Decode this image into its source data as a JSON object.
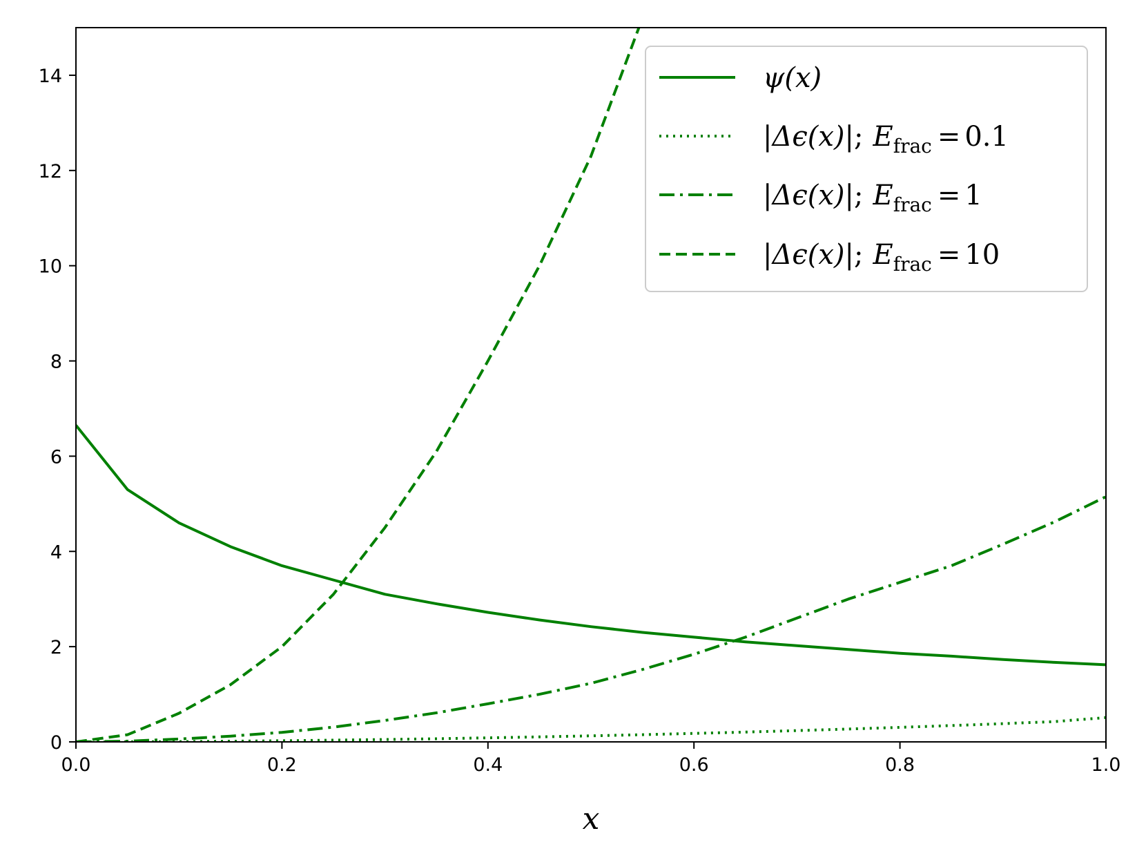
{
  "chart_data": {
    "type": "line",
    "xlabel": "x",
    "ylabel": "",
    "title": "",
    "xlim": [
      0.0,
      1.0
    ],
    "ylim": [
      0,
      15
    ],
    "xticks": [
      "0.0",
      "0.2",
      "0.4",
      "0.6",
      "0.8",
      "1.0"
    ],
    "yticks": [
      "0",
      "2",
      "4",
      "6",
      "8",
      "10",
      "12",
      "14"
    ],
    "grid": false,
    "legend_position": "top-right",
    "color": "#008000",
    "x": [
      0.0,
      0.05,
      0.1,
      0.15,
      0.2,
      0.25,
      0.3,
      0.35,
      0.4,
      0.45,
      0.5,
      0.55,
      0.6,
      0.65,
      0.7,
      0.75,
      0.8,
      0.85,
      0.9,
      0.95,
      1.0
    ],
    "series": [
      {
        "name": "ψ(x)",
        "legend_parts": {
          "func": "ψ(x)"
        },
        "style": "solid",
        "values": [
          6.65,
          5.3,
          4.6,
          4.1,
          3.7,
          3.4,
          3.1,
          2.9,
          2.72,
          2.56,
          2.42,
          2.3,
          2.2,
          2.1,
          2.02,
          1.94,
          1.86,
          1.8,
          1.73,
          1.67,
          1.62
        ]
      },
      {
        "name": "|Δϵ(x)|; E_frac = 0.1",
        "legend_parts": {
          "func": "|Δϵ(x)|",
          "sep": ";",
          "sym": "E",
          "sub": "frac",
          "eq": "=",
          "val": "0.1"
        },
        "style": "dotted",
        "values": [
          0.0,
          0.0015,
          0.006,
          0.014,
          0.024,
          0.036,
          0.05,
          0.066,
          0.085,
          0.105,
          0.127,
          0.151,
          0.178,
          0.206,
          0.237,
          0.27,
          0.305,
          0.343,
          0.383,
          0.426,
          0.51
        ]
      },
      {
        "name": "|Δϵ(x)|; E_frac = 1",
        "legend_parts": {
          "func": "|Δϵ(x)|",
          "sep": ";",
          "sym": "E",
          "sub": "frac",
          "eq": "=",
          "val": "1"
        },
        "style": "dashdot",
        "values": [
          0.0,
          0.015,
          0.06,
          0.12,
          0.2,
          0.31,
          0.45,
          0.61,
          0.8,
          1.0,
          1.23,
          1.52,
          1.84,
          2.2,
          2.6,
          3.0,
          3.35,
          3.7,
          4.15,
          4.62,
          5.15
        ]
      },
      {
        "name": "|Δϵ(x)|; E_frac = 10",
        "legend_parts": {
          "func": "|Δϵ(x)|",
          "sep": ";",
          "sym": "E",
          "sub": "frac",
          "eq": "=",
          "val": "10"
        },
        "style": "dashed",
        "values": [
          0.0,
          0.15,
          0.6,
          1.2,
          2.0,
          3.1,
          4.5,
          6.1,
          8.0,
          10.0,
          12.3,
          15.2,
          null,
          null,
          null,
          null,
          null,
          null,
          null,
          null,
          null
        ]
      }
    ]
  }
}
